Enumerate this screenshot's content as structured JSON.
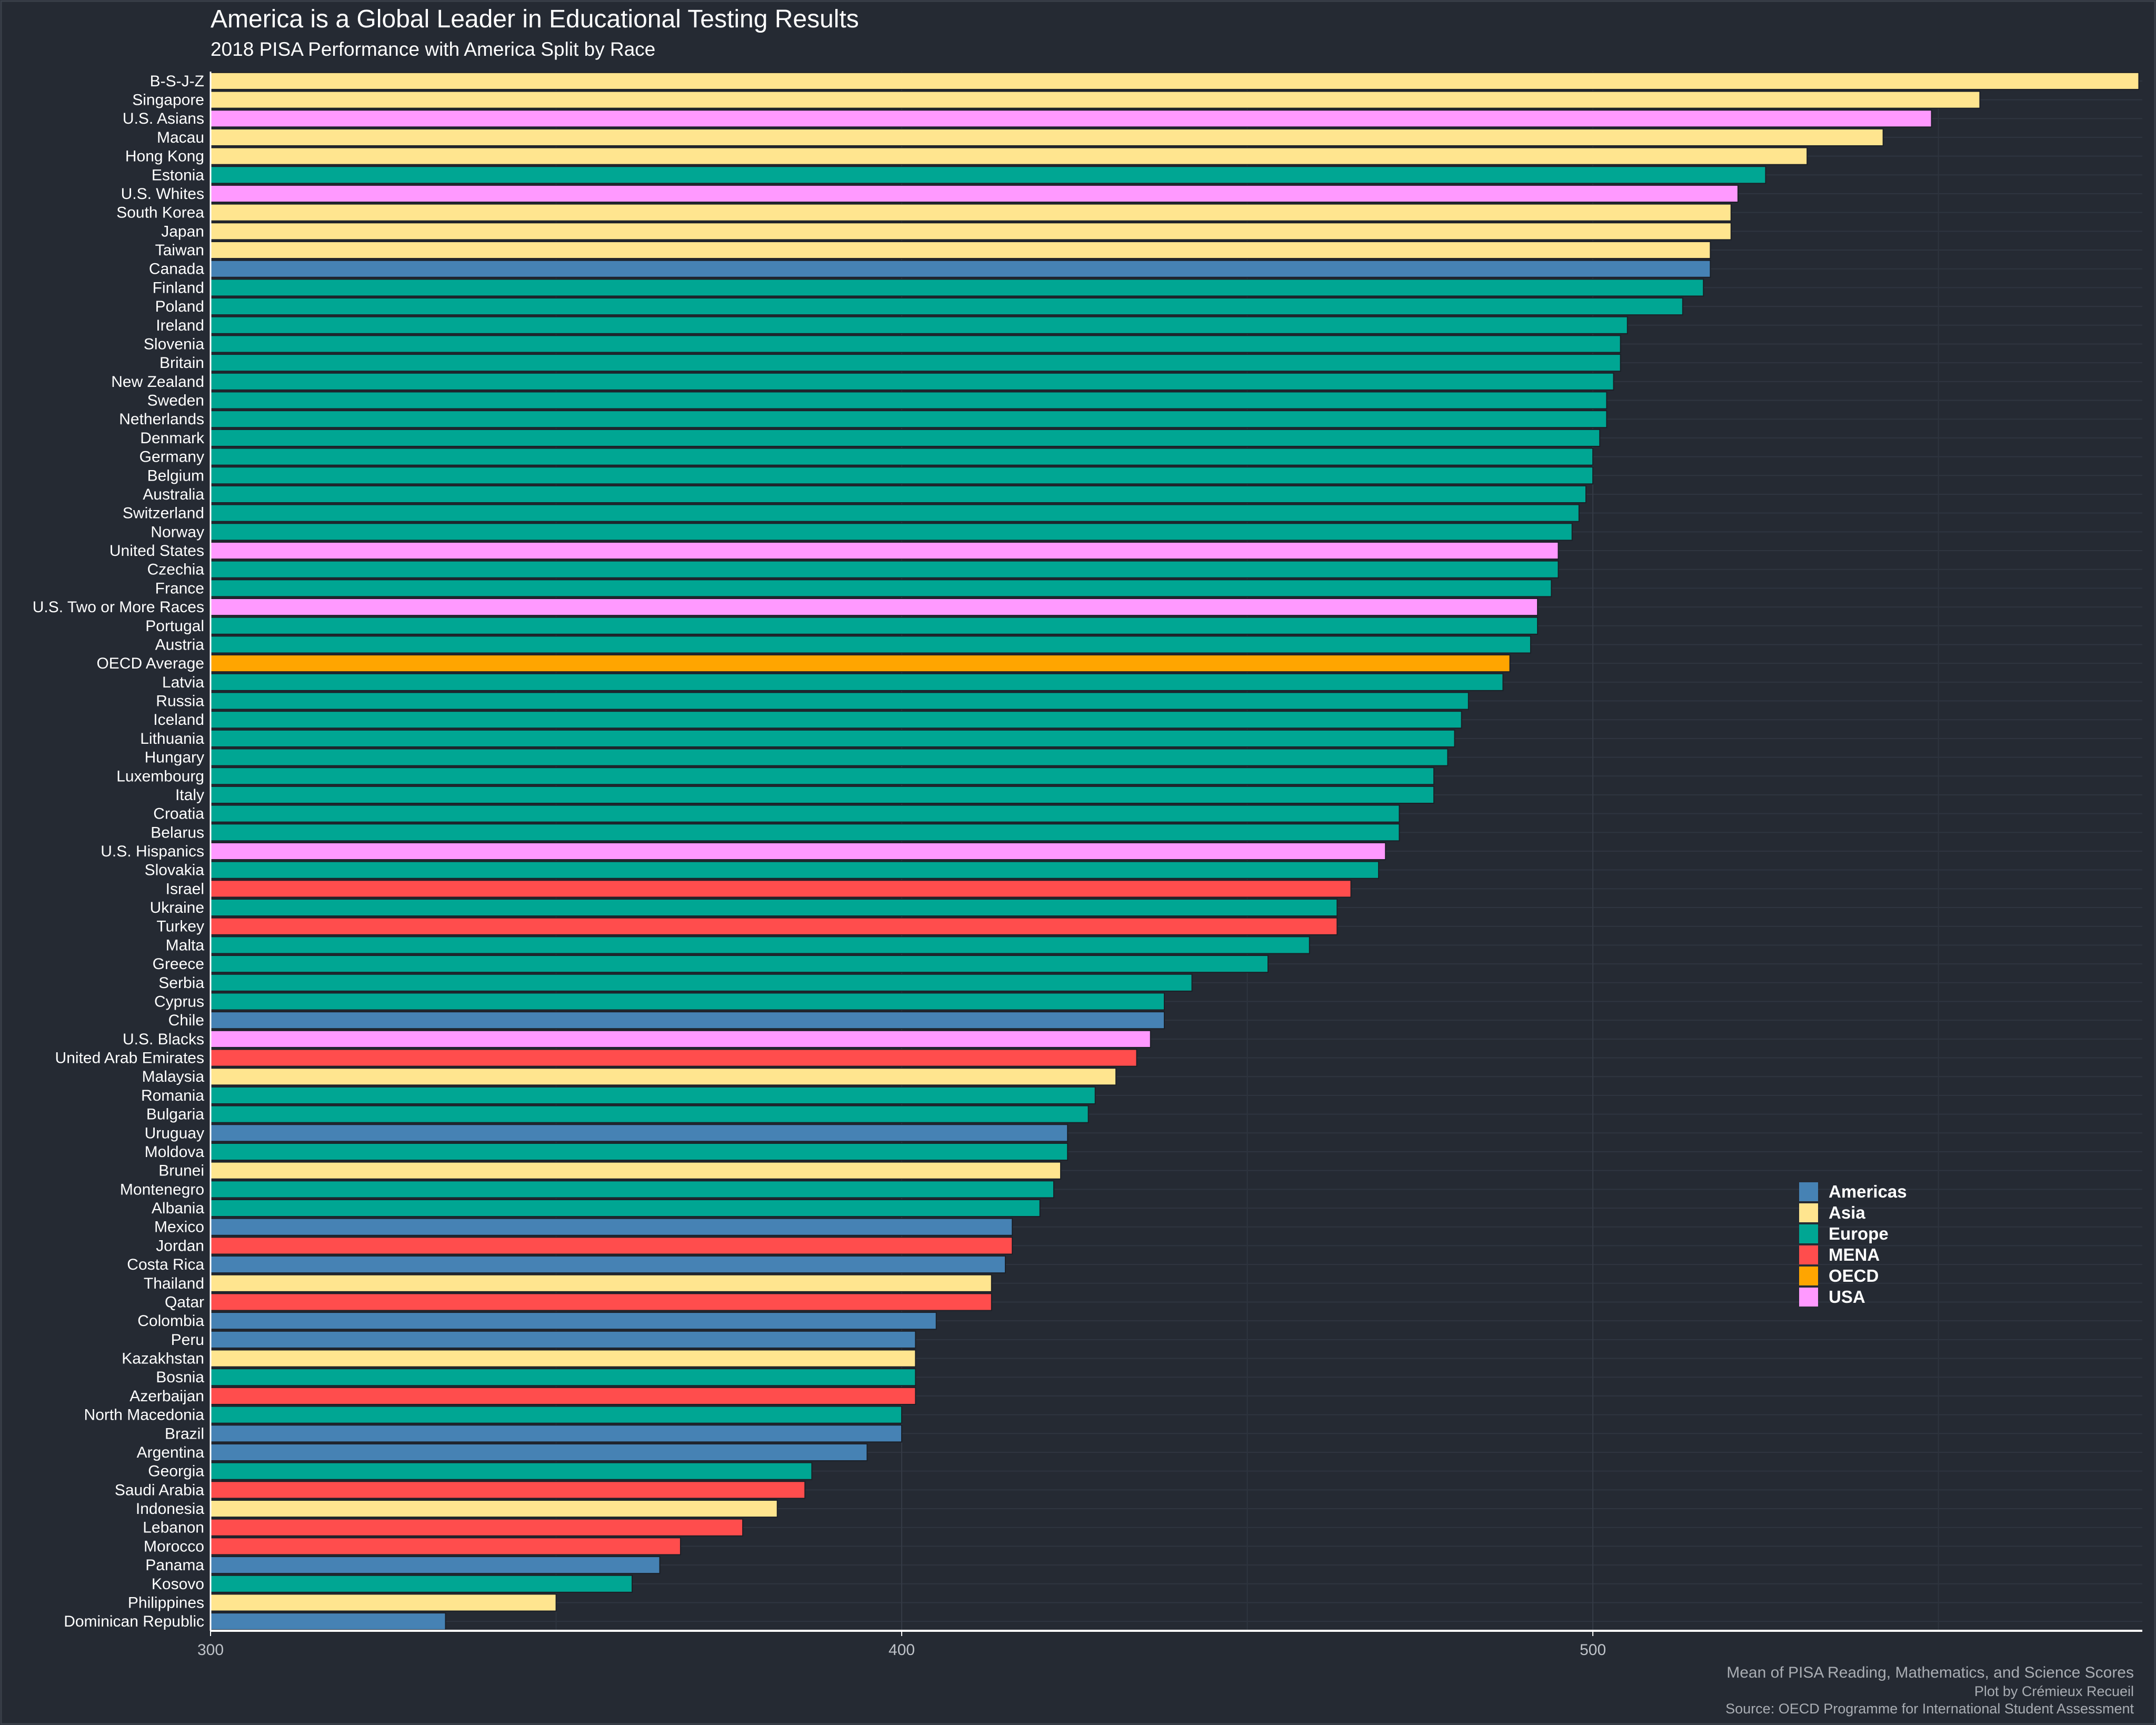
{
  "chart_data": {
    "type": "bar",
    "orientation": "horizontal",
    "title": "America is a Global Leader in Educational Testing Results",
    "subtitle": "2018 PISA Performance with America Split by Race",
    "xlabel": "Mean of PISA Reading, Mathematics, and Science Scores",
    "ylabel": "",
    "captions": [
      "Plot by Crémieux Recueil",
      "Source: OECD Programme for International Student Assessment"
    ],
    "xlim": [
      300,
      580
    ],
    "xticks": [
      300,
      400,
      500
    ],
    "grid": true,
    "legend_position": "right",
    "legend": [
      {
        "name": "Americas",
        "color": "#4682b4"
      },
      {
        "name": "Asia",
        "color": "#ffe58f"
      },
      {
        "name": "Europe",
        "color": "#00a693"
      },
      {
        "name": "MENA",
        "color": "#ff4d4d"
      },
      {
        "name": "OECD",
        "color": "#ffa500"
      },
      {
        "name": "USA",
        "color": "#ff99ff"
      }
    ],
    "bars": [
      {
        "label": "B-S-J-Z",
        "value": 579,
        "region": "Asia"
      },
      {
        "label": "Singapore",
        "value": 556,
        "region": "Asia"
      },
      {
        "label": "U.S. Asians",
        "value": 549,
        "region": "USA"
      },
      {
        "label": "Macau",
        "value": 542,
        "region": "Asia"
      },
      {
        "label": "Hong Kong",
        "value": 531,
        "region": "Asia"
      },
      {
        "label": "Estonia",
        "value": 525,
        "region": "Europe"
      },
      {
        "label": "U.S. Whites",
        "value": 521,
        "region": "USA"
      },
      {
        "label": "South Korea",
        "value": 520,
        "region": "Asia"
      },
      {
        "label": "Japan",
        "value": 520,
        "region": "Asia"
      },
      {
        "label": "Taiwan",
        "value": 517,
        "region": "Asia"
      },
      {
        "label": "Canada",
        "value": 517,
        "region": "Americas"
      },
      {
        "label": "Finland",
        "value": 516,
        "region": "Europe"
      },
      {
        "label": "Poland",
        "value": 513,
        "region": "Europe"
      },
      {
        "label": "Ireland",
        "value": 505,
        "region": "Europe"
      },
      {
        "label": "Slovenia",
        "value": 504,
        "region": "Europe"
      },
      {
        "label": "Britain",
        "value": 504,
        "region": "Europe"
      },
      {
        "label": "New Zealand",
        "value": 503,
        "region": "Europe"
      },
      {
        "label": "Sweden",
        "value": 502,
        "region": "Europe"
      },
      {
        "label": "Netherlands",
        "value": 502,
        "region": "Europe"
      },
      {
        "label": "Denmark",
        "value": 501,
        "region": "Europe"
      },
      {
        "label": "Germany",
        "value": 500,
        "region": "Europe"
      },
      {
        "label": "Belgium",
        "value": 500,
        "region": "Europe"
      },
      {
        "label": "Australia",
        "value": 499,
        "region": "Europe"
      },
      {
        "label": "Switzerland",
        "value": 498,
        "region": "Europe"
      },
      {
        "label": "Norway",
        "value": 497,
        "region": "Europe"
      },
      {
        "label": "United States",
        "value": 495,
        "region": "USA"
      },
      {
        "label": "Czechia",
        "value": 495,
        "region": "Europe"
      },
      {
        "label": "France",
        "value": 494,
        "region": "Europe"
      },
      {
        "label": "U.S. Two or More Races",
        "value": 492,
        "region": "USA"
      },
      {
        "label": "Portugal",
        "value": 492,
        "region": "Europe"
      },
      {
        "label": "Austria",
        "value": 491,
        "region": "Europe"
      },
      {
        "label": "OECD Average",
        "value": 488,
        "region": "OECD"
      },
      {
        "label": "Latvia",
        "value": 487,
        "region": "Europe"
      },
      {
        "label": "Russia",
        "value": 482,
        "region": "Europe"
      },
      {
        "label": "Iceland",
        "value": 481,
        "region": "Europe"
      },
      {
        "label": "Lithuania",
        "value": 480,
        "region": "Europe"
      },
      {
        "label": "Hungary",
        "value": 479,
        "region": "Europe"
      },
      {
        "label": "Luxembourg",
        "value": 477,
        "region": "Europe"
      },
      {
        "label": "Italy",
        "value": 477,
        "region": "Europe"
      },
      {
        "label": "Croatia",
        "value": 472,
        "region": "Europe"
      },
      {
        "label": "Belarus",
        "value": 472,
        "region": "Europe"
      },
      {
        "label": "U.S. Hispanics",
        "value": 470,
        "region": "USA"
      },
      {
        "label": "Slovakia",
        "value": 469,
        "region": "Europe"
      },
      {
        "label": "Israel",
        "value": 465,
        "region": "MENA"
      },
      {
        "label": "Ukraine",
        "value": 463,
        "region": "Europe"
      },
      {
        "label": "Turkey",
        "value": 463,
        "region": "MENA"
      },
      {
        "label": "Malta",
        "value": 459,
        "region": "Europe"
      },
      {
        "label": "Greece",
        "value": 453,
        "region": "Europe"
      },
      {
        "label": "Serbia",
        "value": 442,
        "region": "Europe"
      },
      {
        "label": "Cyprus",
        "value": 438,
        "region": "Europe"
      },
      {
        "label": "Chile",
        "value": 438,
        "region": "Americas"
      },
      {
        "label": "U.S. Blacks",
        "value": 436,
        "region": "USA"
      },
      {
        "label": "United Arab Emirates",
        "value": 434,
        "region": "MENA"
      },
      {
        "label": "Malaysia",
        "value": 431,
        "region": "Asia"
      },
      {
        "label": "Romania",
        "value": 428,
        "region": "Europe"
      },
      {
        "label": "Bulgaria",
        "value": 427,
        "region": "Europe"
      },
      {
        "label": "Uruguay",
        "value": 424,
        "region": "Americas"
      },
      {
        "label": "Moldova",
        "value": 424,
        "region": "Europe"
      },
      {
        "label": "Brunei",
        "value": 423,
        "region": "Asia"
      },
      {
        "label": "Montenegro",
        "value": 422,
        "region": "Europe"
      },
      {
        "label": "Albania",
        "value": 420,
        "region": "Europe"
      },
      {
        "label": "Mexico",
        "value": 416,
        "region": "Americas"
      },
      {
        "label": "Jordan",
        "value": 416,
        "region": "MENA"
      },
      {
        "label": "Costa Rica",
        "value": 415,
        "region": "Americas"
      },
      {
        "label": "Thailand",
        "value": 413,
        "region": "Asia"
      },
      {
        "label": "Qatar",
        "value": 413,
        "region": "MENA"
      },
      {
        "label": "Colombia",
        "value": 405,
        "region": "Americas"
      },
      {
        "label": "Peru",
        "value": 402,
        "region": "Americas"
      },
      {
        "label": "Kazakhstan",
        "value": 402,
        "region": "Asia"
      },
      {
        "label": "Bosnia",
        "value": 402,
        "region": "Europe"
      },
      {
        "label": "Azerbaijan",
        "value": 402,
        "region": "MENA"
      },
      {
        "label": "North Macedonia",
        "value": 400,
        "region": "Europe"
      },
      {
        "label": "Brazil",
        "value": 400,
        "region": "Americas"
      },
      {
        "label": "Argentina",
        "value": 395,
        "region": "Americas"
      },
      {
        "label": "Georgia",
        "value": 387,
        "region": "Europe"
      },
      {
        "label": "Saudi Arabia",
        "value": 386,
        "region": "MENA"
      },
      {
        "label": "Indonesia",
        "value": 382,
        "region": "Asia"
      },
      {
        "label": "Lebanon",
        "value": 377,
        "region": "MENA"
      },
      {
        "label": "Morocco",
        "value": 368,
        "region": "MENA"
      },
      {
        "label": "Panama",
        "value": 365,
        "region": "Americas"
      },
      {
        "label": "Kosovo",
        "value": 361,
        "region": "Europe"
      },
      {
        "label": "Philippines",
        "value": 350,
        "region": "Asia"
      },
      {
        "label": "Dominican Republic",
        "value": 334,
        "region": "Americas"
      }
    ]
  }
}
